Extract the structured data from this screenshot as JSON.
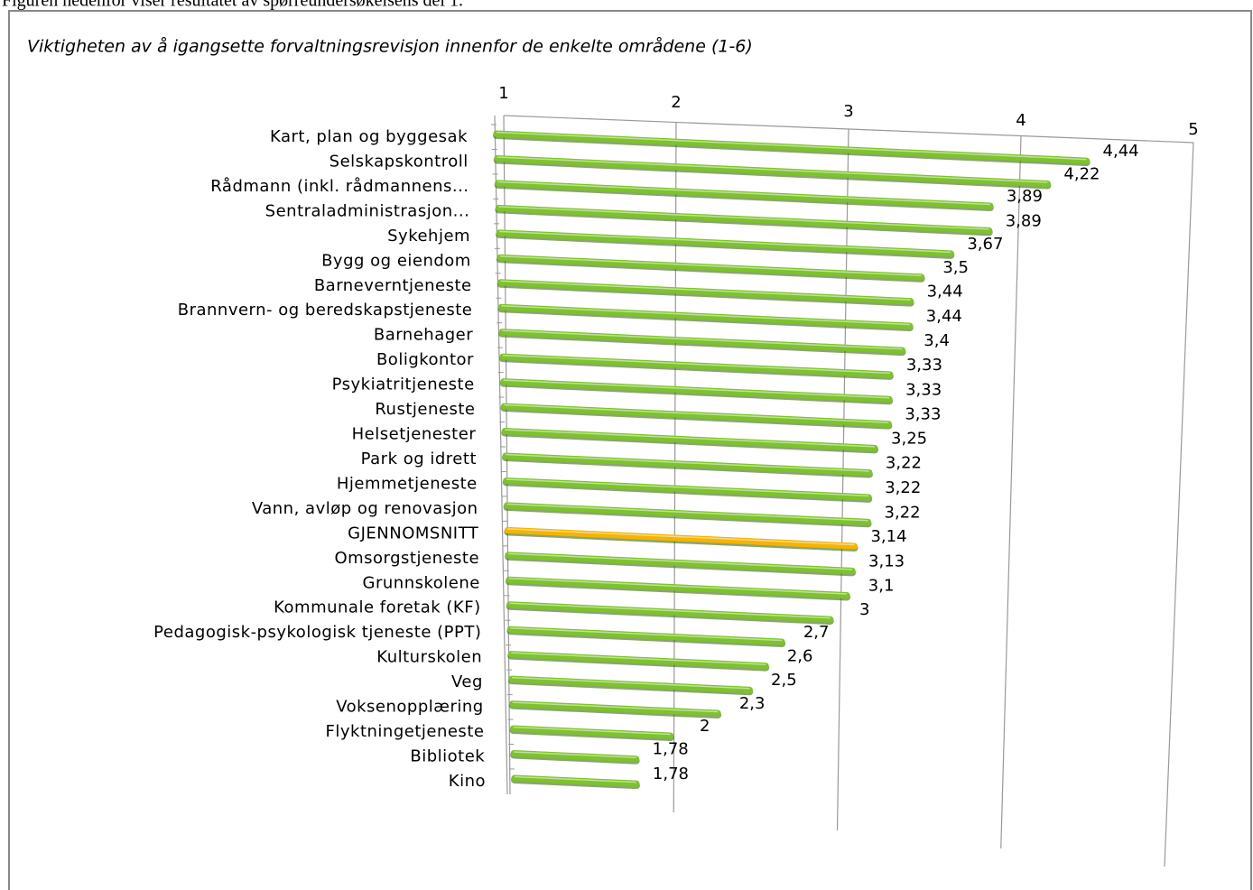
{
  "header": "Figuren nedenfor viser resultatet av spørreundersøkelsens del 1.",
  "chart_data": {
    "type": "bar3d",
    "title": "Viktigheten av å igangsette forvaltningsrevisjon innenfor de enkelte områdene (1-6)",
    "categories": [
      "Kart, plan og byggesak",
      "Selskapskontroll",
      "Rådmann (inkl. rådmannens...",
      "Sentraladministrasjon...",
      "Sykehjem",
      "Bygg og eiendom",
      "Barneverntjeneste",
      "Brannvern- og beredskapstjeneste",
      "Barnehager",
      "Boligkontor",
      "Psykiatritjeneste",
      "Rustjeneste",
      "Helsetjenester",
      "Park og idrett",
      "Hjemmetjeneste",
      "Vann, avløp og renovasjon",
      "GJENNOMSNITT",
      "Omsorgstjeneste",
      "Grunnskolene",
      "Kommunale foretak (KF)",
      "Pedagogisk-psykologisk tjeneste (PPT)",
      "Kulturskolen",
      "Veg",
      "Voksenopplæring",
      "Flyktningetjeneste",
      "Bibliotek",
      "Kino"
    ],
    "values": [
      4.44,
      4.22,
      3.89,
      3.89,
      3.67,
      3.5,
      3.44,
      3.44,
      3.4,
      3.33,
      3.33,
      3.33,
      3.25,
      3.22,
      3.22,
      3.22,
      3.14,
      3.13,
      3.1,
      3,
      2.7,
      2.6,
      2.5,
      2.3,
      2,
      1.78,
      1.78
    ],
    "value_labels": [
      "4,44",
      "4,22",
      "3,89",
      "3,89",
      "3,67",
      "3,5",
      "3,44",
      "3,44",
      "3,4",
      "3,33",
      "3,33",
      "3,33",
      "3,25",
      "3,22",
      "3,22",
      "3,22",
      "3,14",
      "3,13",
      "3,1",
      "3",
      "2,7",
      "2,6",
      "2,5",
      "2,3",
      "2",
      "1,78",
      "1,78"
    ],
    "colors": [
      "#7dc32a",
      "#7dc32a",
      "#7dc32a",
      "#7dc32a",
      "#7dc32a",
      "#7dc32a",
      "#7dc32a",
      "#7dc32a",
      "#7dc32a",
      "#7dc32a",
      "#7dc32a",
      "#7dc32a",
      "#7dc32a",
      "#7dc32a",
      "#7dc32a",
      "#7dc32a",
      "#f5b400",
      "#7dc32a",
      "#7dc32a",
      "#7dc32a",
      "#7dc32a",
      "#7dc32a",
      "#7dc32a",
      "#7dc32a",
      "#7dc32a",
      "#7dc32a",
      "#7dc32a"
    ],
    "xlim": [
      1,
      5
    ],
    "xticks": [
      1,
      2,
      3,
      4,
      5
    ],
    "grid": true
  }
}
